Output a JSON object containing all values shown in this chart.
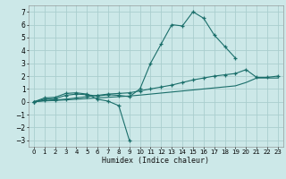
{
  "xlabel": "Humidex (Indice chaleur)",
  "background_color": "#cce8e8",
  "grid_color": "#aacece",
  "line_color": "#1a6e6a",
  "xlim": [
    -0.5,
    23.5
  ],
  "ylim": [
    -3.5,
    7.5
  ],
  "xticks": [
    0,
    1,
    2,
    3,
    4,
    5,
    6,
    7,
    8,
    9,
    10,
    11,
    12,
    13,
    14,
    15,
    16,
    17,
    18,
    19,
    20,
    21,
    22,
    23
  ],
  "yticks": [
    -3,
    -2,
    -1,
    0,
    1,
    2,
    3,
    4,
    5,
    6,
    7
  ],
  "s1_x": [
    0,
    1,
    2,
    3,
    4,
    5,
    6,
    7,
    8,
    9
  ],
  "s1_y": [
    0.0,
    0.3,
    0.35,
    0.65,
    0.7,
    0.6,
    0.2,
    0.05,
    -0.3,
    -3.0
  ],
  "s2_x": [
    0,
    1,
    2,
    3,
    4,
    5,
    6,
    7,
    8,
    9,
    10,
    11,
    12,
    13,
    14,
    15,
    16,
    17,
    18,
    19
  ],
  "s2_y": [
    0.0,
    0.2,
    0.25,
    0.5,
    0.6,
    0.55,
    0.45,
    0.55,
    0.5,
    0.4,
    1.0,
    3.0,
    4.5,
    6.0,
    5.9,
    7.0,
    6.5,
    5.2,
    4.3,
    3.4
  ],
  "s3_x": [
    0,
    1,
    2,
    3,
    4,
    5,
    6,
    7,
    8,
    9,
    10,
    11,
    12,
    13,
    14,
    15,
    16,
    17,
    18,
    19,
    20,
    21,
    22,
    23
  ],
  "s3_y": [
    0.0,
    0.1,
    0.15,
    0.2,
    0.3,
    0.4,
    0.5,
    0.6,
    0.65,
    0.7,
    0.85,
    1.0,
    1.15,
    1.3,
    1.5,
    1.7,
    1.85,
    2.0,
    2.1,
    2.2,
    2.5,
    1.9,
    1.9,
    2.0
  ],
  "s4_x": [
    0,
    1,
    2,
    3,
    4,
    5,
    6,
    7,
    8,
    9,
    10,
    11,
    12,
    13,
    14,
    15,
    16,
    17,
    18,
    19,
    20,
    21,
    22,
    23
  ],
  "s4_y": [
    0.0,
    0.07,
    0.1,
    0.15,
    0.2,
    0.25,
    0.3,
    0.35,
    0.4,
    0.45,
    0.52,
    0.6,
    0.68,
    0.76,
    0.84,
    0.92,
    1.0,
    1.08,
    1.16,
    1.24,
    1.5,
    1.85,
    1.85,
    1.85
  ]
}
